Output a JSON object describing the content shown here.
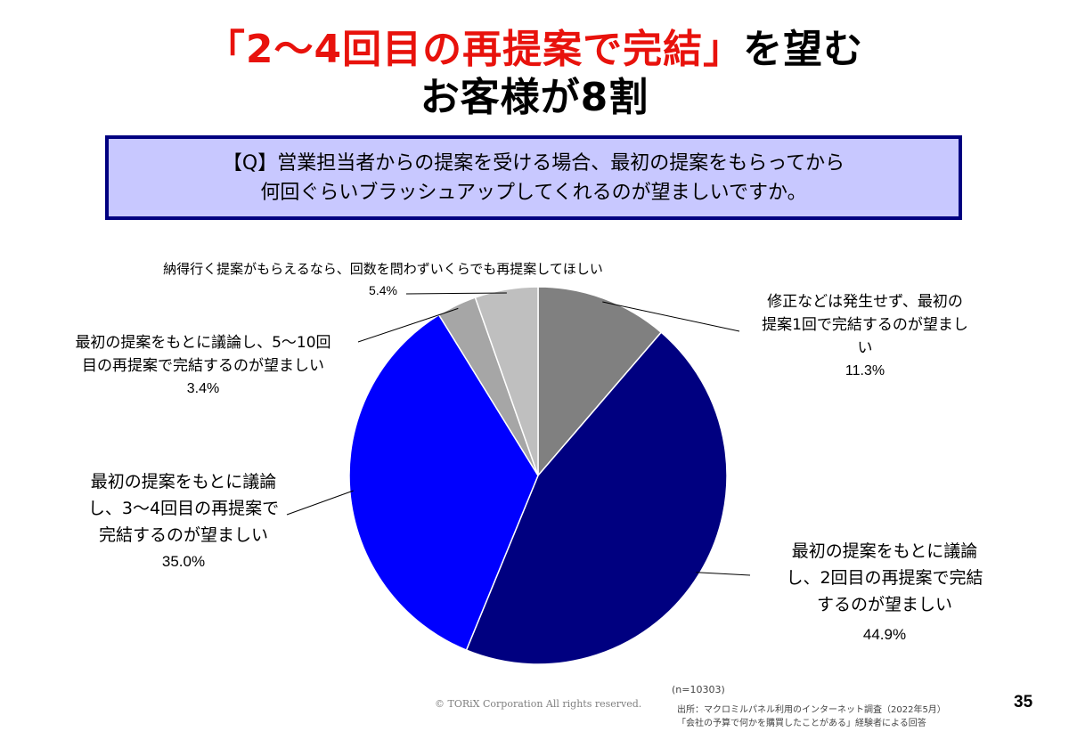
{
  "title": {
    "line1_red": "「2～4回目の再提案で完結」",
    "line1_black": "を望む",
    "line2": "お客様が8割"
  },
  "question": {
    "line1": "【Q】営業担当者からの提案を受ける場合、最初の提案をもらってから",
    "line2": "何回ぐらいブラッシュアップしてくれるのが望ましいですか。"
  },
  "labels": [
    {
      "lines": [
        "修正などは発生せず、最初の",
        "提案1回で完結するのが望まし",
        "い"
      ],
      "pct": "11.3%"
    },
    {
      "lines": [
        "最初の提案をもとに議論",
        "し、2回目の再提案で完結",
        "するのが望ましい"
      ],
      "pct": "44.9%"
    },
    {
      "lines": [
        "最初の提案をもとに議論",
        "し、3～4回目の再提案で",
        "完結するのが望ましい"
      ],
      "pct": "35.0%"
    },
    {
      "lines": [
        "最初の提案をもとに議論し、5～10回",
        "目の再提案で完結するのが望ましい"
      ],
      "pct": "3.4%"
    },
    {
      "lines": [
        "納得行く提案がもらえるなら、回数を問わずいくらでも再提案してほしい"
      ],
      "pct": "5.4%"
    }
  ],
  "chart_data": {
    "type": "pie",
    "slices": [
      {
        "label": "修正などは発生せず、最初の提案1回で完結するのが望ましい",
        "value": 11.3,
        "color": "#808080"
      },
      {
        "label": "最初の提案をもとに議論し、2回目の再提案で完結するのが望ましい",
        "value": 44.9,
        "color": "#000080"
      },
      {
        "label": "最初の提案をもとに議論し、3～4回目の再提案で完結するのが望ましい",
        "value": 35.0,
        "color": "#0000ff"
      },
      {
        "label": "最初の提案をもとに議論し、5～10回目の再提案で完結するのが望ましい",
        "value": 3.4,
        "color": "#a6a6a6"
      },
      {
        "label": "納得行く提案がもらえるなら、回数を問わずいくらでも再提案してほしい",
        "value": 5.4,
        "color": "#bfbfbf"
      }
    ],
    "start": "12 o'clock",
    "direction": "clockwise"
  },
  "footer": {
    "copyright": "© TORiX Corporation All rights reserved.",
    "n": "(n=10303)",
    "source_line1": "出所：マクロミルパネル利用のインターネット調査（2022年5月）",
    "source_line2": "「会社の予算で何かを購買したことがある」経験者による回答",
    "page": "35"
  }
}
